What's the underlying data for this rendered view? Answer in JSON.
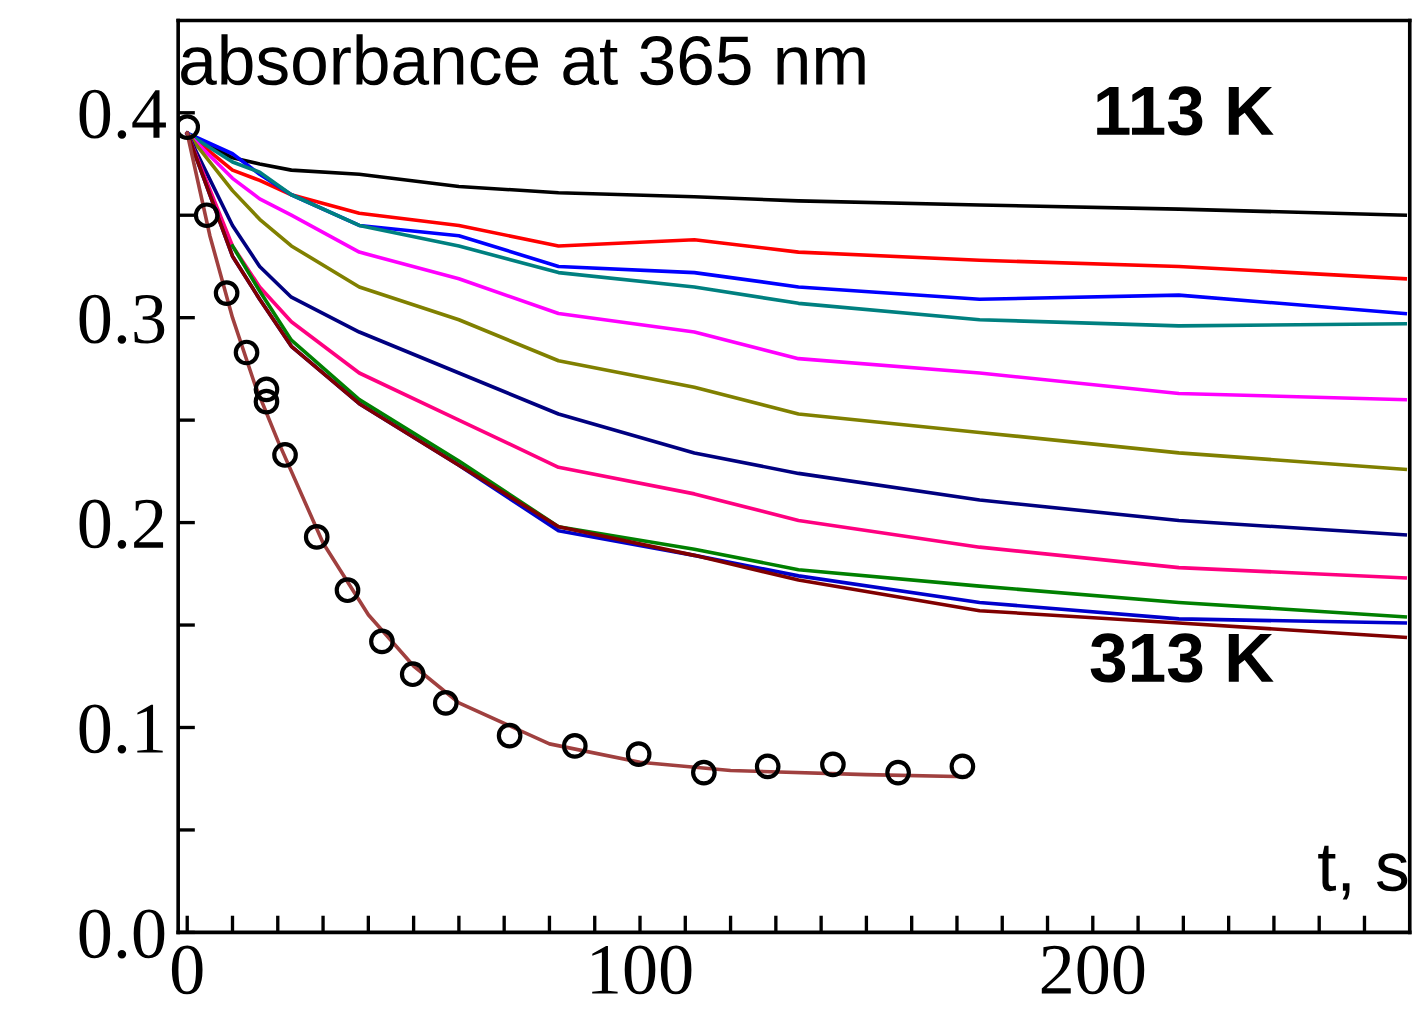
{
  "chart_data": {
    "type": "line",
    "annotations": [
      "absorbance at 365 nm",
      "113 K",
      "313 K",
      "t, s"
    ],
    "x": [
      0,
      10,
      16,
      23,
      38,
      60,
      82,
      112,
      135,
      175,
      219,
      269
    ],
    "series": [
      {
        "color": "#000000",
        "values": [
          0.39,
          0.378,
          0.375,
          0.372,
          0.37,
          0.364,
          0.361,
          0.359,
          0.357,
          0.355,
          0.353,
          0.35
        ]
      },
      {
        "color": "#ff0000",
        "values": [
          0.39,
          0.372,
          0.367,
          0.36,
          0.351,
          0.345,
          0.335,
          0.338,
          0.332,
          0.328,
          0.325,
          0.319
        ]
      },
      {
        "color": "#0000ff",
        "values": [
          0.39,
          0.38,
          0.37,
          0.36,
          0.345,
          0.34,
          0.325,
          0.322,
          0.315,
          0.309,
          0.311,
          0.302
        ]
      },
      {
        "color": "#008080",
        "values": [
          0.39,
          0.376,
          0.371,
          0.36,
          0.345,
          0.335,
          0.322,
          0.315,
          0.307,
          0.299,
          0.296,
          0.297
        ]
      },
      {
        "color": "#ff00ff",
        "values": [
          0.39,
          0.368,
          0.358,
          0.35,
          0.332,
          0.319,
          0.302,
          0.293,
          0.28,
          0.273,
          0.263,
          0.26
        ]
      },
      {
        "color": "#808000",
        "values": [
          0.39,
          0.362,
          0.348,
          0.335,
          0.315,
          0.299,
          0.279,
          0.266,
          0.253,
          0.244,
          0.234,
          0.226
        ]
      },
      {
        "color": "#000080",
        "values": [
          0.39,
          0.345,
          0.325,
          0.31,
          0.293,
          0.273,
          0.253,
          0.234,
          0.224,
          0.211,
          0.201,
          0.194
        ]
      },
      {
        "color": "#ff0080",
        "values": [
          0.39,
          0.335,
          0.315,
          0.298,
          0.273,
          0.25,
          0.227,
          0.214,
          0.201,
          0.188,
          0.178,
          0.173
        ]
      },
      {
        "color": "#008000",
        "values": [
          null,
          0.335,
          0.313,
          0.289,
          0.26,
          0.23,
          0.198,
          0.187,
          0.177,
          0.169,
          0.161,
          0.154
        ]
      },
      {
        "color": "#0000cc",
        "values": [
          0.39,
          0.33,
          0.309,
          0.286,
          0.258,
          0.228,
          0.196,
          0.184,
          0.174,
          0.161,
          0.153,
          0.151
        ]
      },
      {
        "color": "#800000",
        "values": [
          0.39,
          0.33,
          0.309,
          0.286,
          0.258,
          0.228,
          0.198,
          0.184,
          0.172,
          0.157,
          0.151,
          0.144
        ]
      },
      {
        "type": "line",
        "color": "#a0403f",
        "x": [
          0,
          5,
          10,
          15,
          20,
          30,
          40,
          50,
          60,
          80,
          100,
          120,
          150,
          172
        ],
        "values": [
          0.39,
          0.34,
          0.3,
          0.267,
          0.24,
          0.19,
          0.155,
          0.13,
          0.112,
          0.092,
          0.083,
          0.079,
          0.077,
          0.076
        ]
      },
      {
        "type": "scatter",
        "marker": "circle",
        "color": "#000000",
        "x": [
          0,
          4.3,
          8.7,
          13.1,
          17.5,
          17.5,
          21.6,
          28.6,
          35.4,
          43,
          49.8,
          57.1,
          71.2,
          85.6,
          99.7,
          114.1,
          128.2,
          142.6,
          157,
          171.2
        ],
        "values": [
          0.393,
          0.35,
          0.312,
          0.283,
          0.265,
          0.259,
          0.233,
          0.193,
          0.167,
          0.142,
          0.126,
          0.112,
          0.096,
          0.091,
          0.087,
          0.078,
          0.081,
          0.082,
          0.078,
          0.081
        ]
      }
    ],
    "xlim": [
      -2,
      270
    ],
    "xticks": [
      0,
      {
        "value": 10,
        "label": null
      },
      {
        "value": 20,
        "label": null
      },
      {
        "value": 30,
        "label": null
      },
      {
        "value": 40,
        "label": null
      },
      {
        "value": 50,
        "label": null
      },
      {
        "value": 60,
        "label": null
      },
      {
        "value": 70,
        "label": null
      },
      {
        "value": 80,
        "label": null
      },
      {
        "value": 90,
        "label": null
      },
      100,
      {
        "value": 110,
        "label": null
      },
      {
        "value": 120,
        "label": null
      },
      {
        "value": 130,
        "label": null
      },
      {
        "value": 140,
        "label": null
      },
      {
        "value": 150,
        "label": null
      },
      {
        "value": 160,
        "label": null
      },
      {
        "value": 170,
        "label": null
      },
      {
        "value": 180,
        "label": null
      },
      {
        "value": 190,
        "label": null
      },
      200,
      {
        "value": 210,
        "label": null
      },
      {
        "value": 220,
        "label": null
      },
      {
        "value": 230,
        "label": null
      },
      {
        "value": 240,
        "label": null
      },
      {
        "value": 250,
        "label": null
      },
      {
        "value": 260,
        "label": null
      }
    ],
    "ylim": [
      0,
      0.445
    ],
    "yticks": [
      {
        "value": 0,
        "label": "0.0"
      },
      {
        "value": 0.05,
        "label": null
      },
      0.1,
      {
        "value": 0.15,
        "label": null
      },
      0.2,
      {
        "value": 0.25,
        "label": null
      },
      0.3,
      {
        "value": 0.35,
        "label": null
      },
      0.4
    ],
    "grid": false,
    "legend": false
  }
}
